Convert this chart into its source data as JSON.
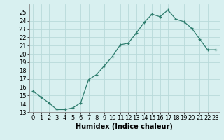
{
  "x": [
    0,
    1,
    2,
    3,
    4,
    5,
    6,
    7,
    8,
    9,
    10,
    11,
    12,
    13,
    14,
    15,
    16,
    17,
    18,
    19,
    20,
    21,
    22,
    23
  ],
  "y": [
    15.5,
    14.8,
    14.1,
    13.3,
    13.3,
    13.5,
    14.1,
    16.9,
    17.5,
    18.6,
    19.7,
    21.1,
    21.3,
    22.5,
    23.8,
    24.8,
    24.5,
    25.3,
    24.2,
    23.9,
    23.1,
    21.8,
    20.5,
    20.5
  ],
  "line_color": "#2e7d6e",
  "marker": "+",
  "marker_size": 3,
  "background_color": "#d8f0f0",
  "grid_color": "#b8dada",
  "xlabel": "Humidex (Indice chaleur)",
  "ylim": [
    13,
    26
  ],
  "xlim": [
    -0.5,
    23.5
  ],
  "yticks": [
    13,
    14,
    15,
    16,
    17,
    18,
    19,
    20,
    21,
    22,
    23,
    24,
    25
  ],
  "xticks": [
    0,
    1,
    2,
    3,
    4,
    5,
    6,
    7,
    8,
    9,
    10,
    11,
    12,
    13,
    14,
    15,
    16,
    17,
    18,
    19,
    20,
    21,
    22,
    23
  ],
  "tick_label_fontsize": 6,
  "xlabel_fontsize": 7,
  "line_width": 0.9
}
